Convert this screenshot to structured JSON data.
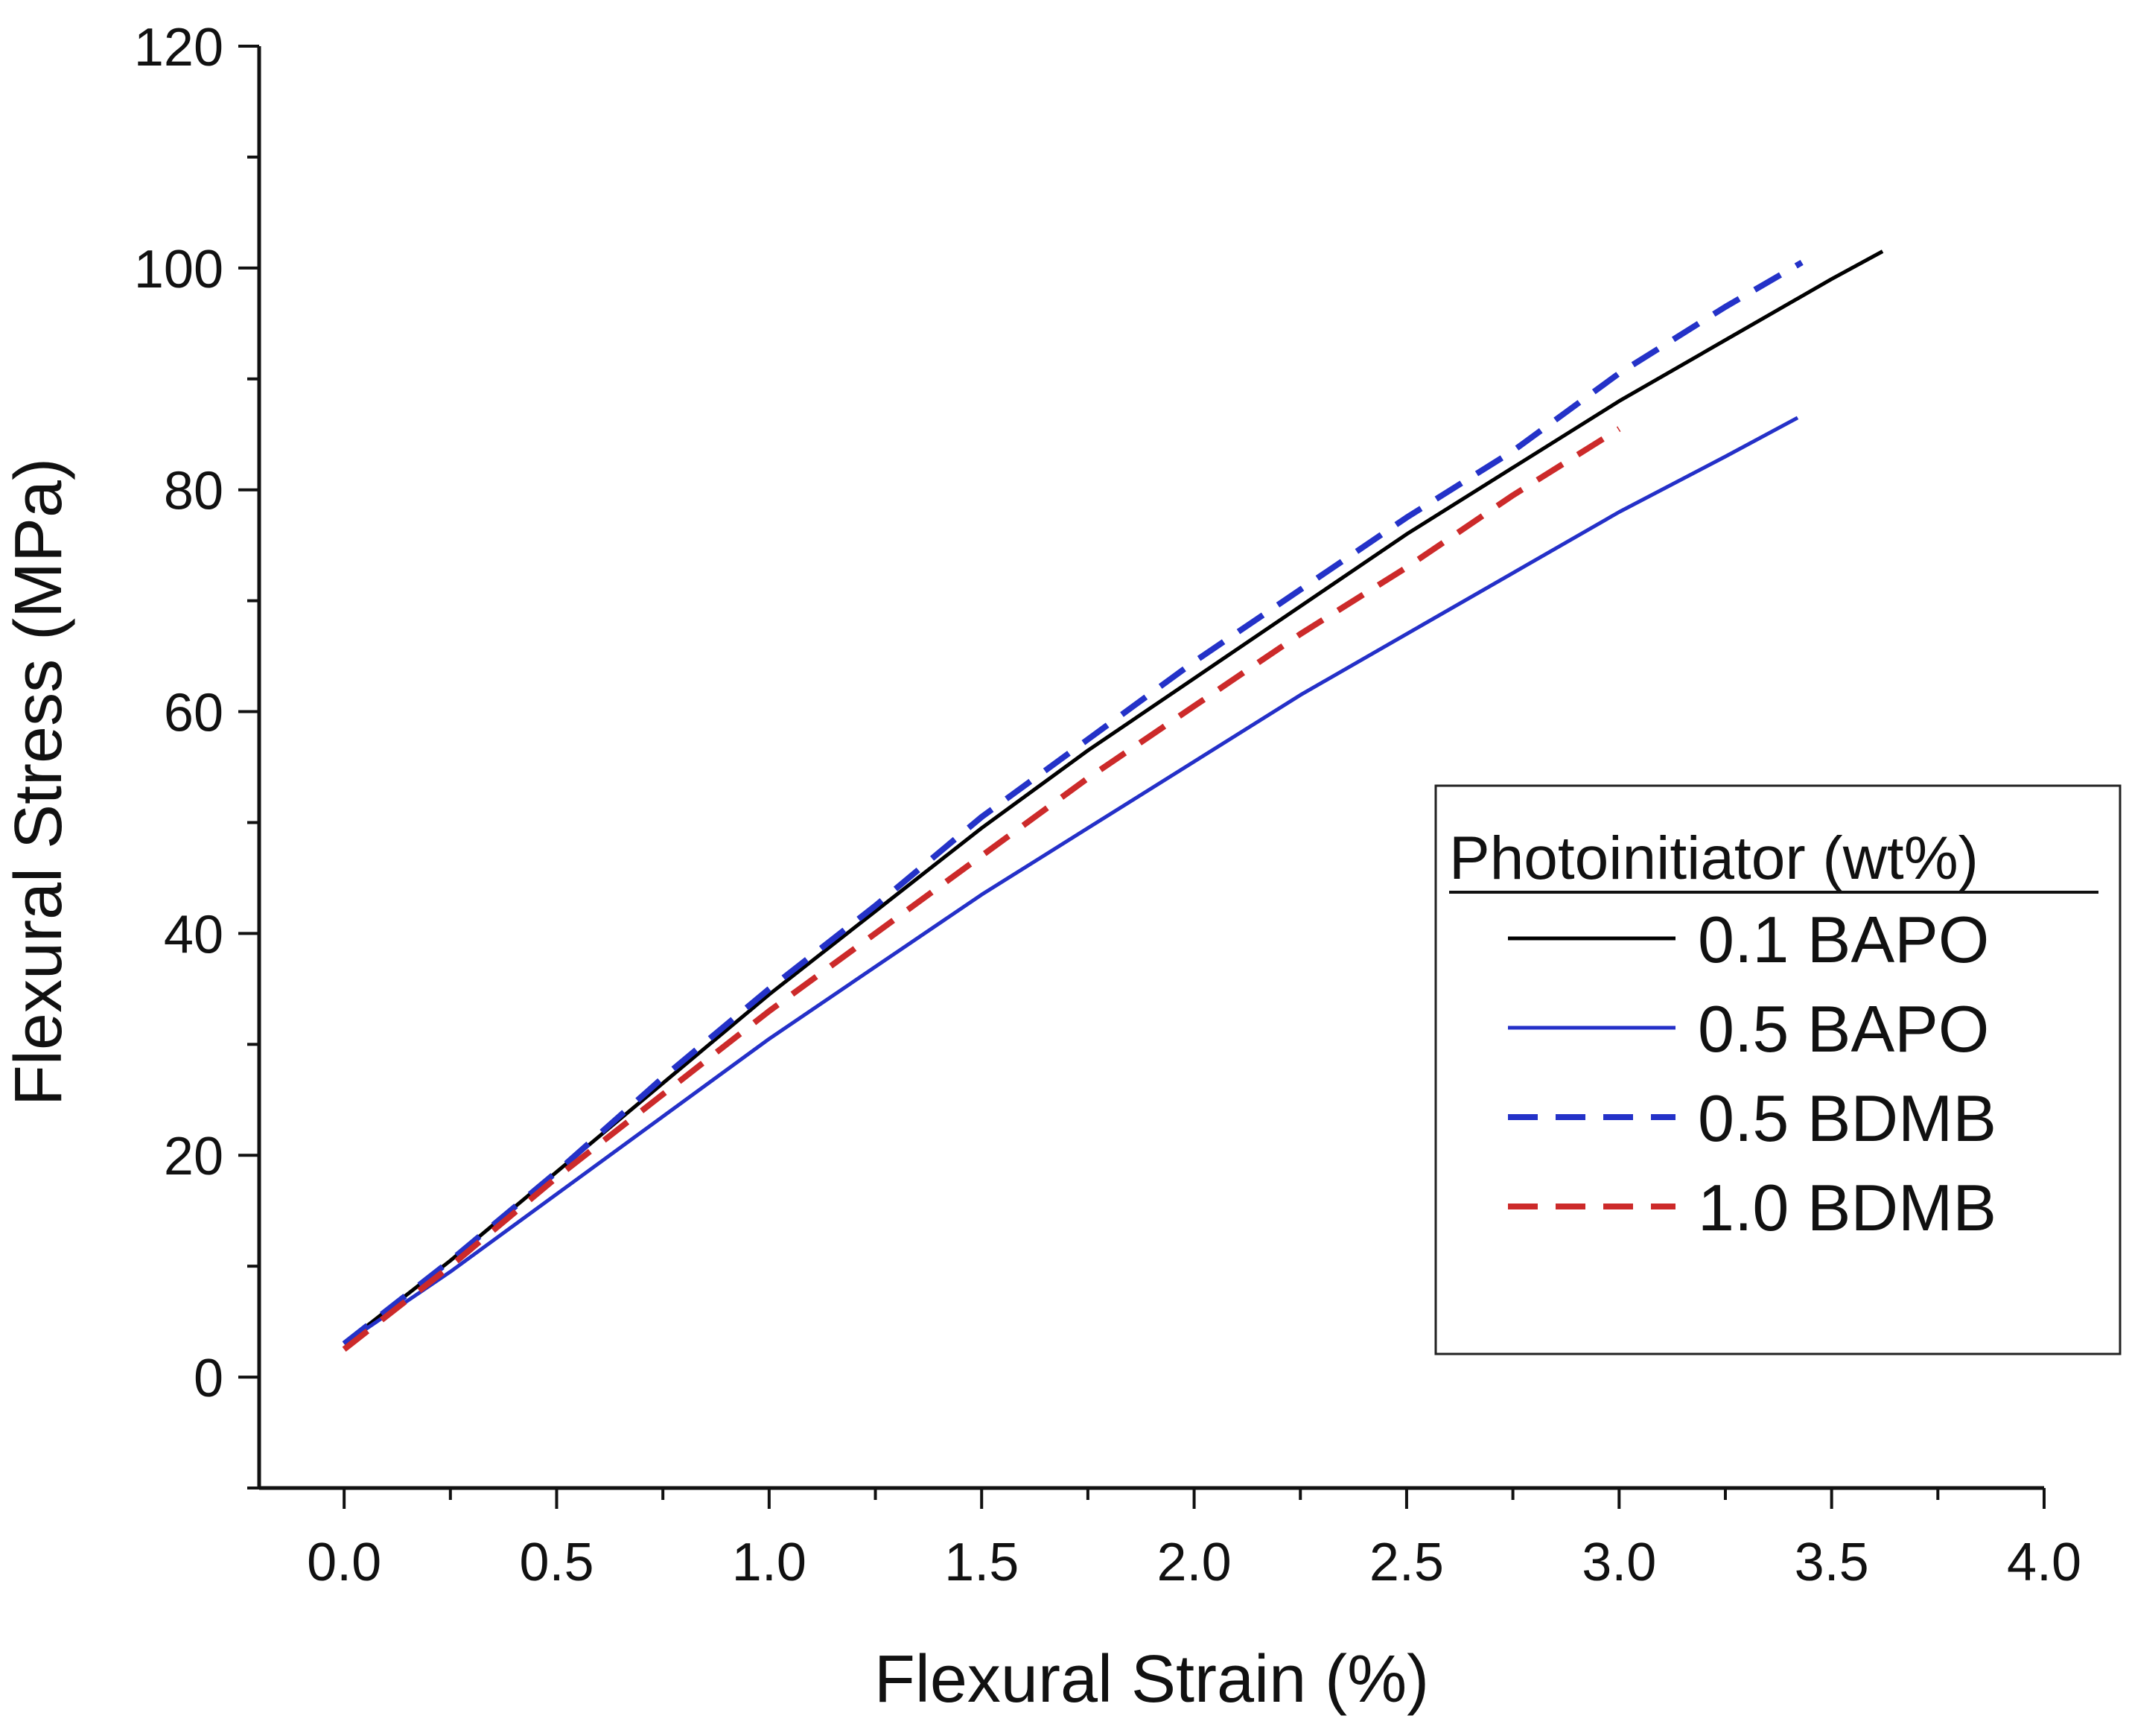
{
  "chart_data": {
    "type": "line",
    "title": "",
    "xlabel": "Flexural Strain (%)",
    "ylabel": "Flexural Stress (MPa)",
    "xlim": [
      -0.2,
      4.0
    ],
    "ylim": [
      -10,
      120
    ],
    "xticks": [
      0.0,
      0.5,
      1.0,
      1.5,
      2.0,
      2.5,
      3.0,
      3.5,
      4.0
    ],
    "xtick_labels": [
      "0.0",
      "0.5",
      "1.0",
      "1.5",
      "2.0",
      "2.5",
      "3.0",
      "3.5",
      "4.0"
    ],
    "yticks": [
      0,
      20,
      40,
      60,
      80,
      100,
      120
    ],
    "ytick_labels": [
      "0",
      "20",
      "40",
      "60",
      "80",
      "100",
      "120"
    ],
    "grid": false,
    "legend": {
      "title": "Photoinitiator (wt%)",
      "position": "right"
    },
    "series": [
      {
        "name": "0.1 BAPO",
        "color": "#000000",
        "dash": "solid",
        "x": [
          0.0,
          0.25,
          0.5,
          0.75,
          1.0,
          1.25,
          1.5,
          1.75,
          2.0,
          2.25,
          2.5,
          2.75,
          3.0,
          3.25,
          3.5,
          3.62
        ],
        "y": [
          3,
          10.5,
          18.5,
          26.5,
          34.5,
          42,
          49.5,
          56.5,
          63,
          69.5,
          76,
          82,
          88,
          93.5,
          99,
          101.5
        ]
      },
      {
        "name": "0.5 BAPO",
        "color": "#2430c8",
        "dash": "solid",
        "x": [
          0.0,
          0.25,
          0.5,
          0.75,
          1.0,
          1.25,
          1.5,
          1.75,
          2.0,
          2.25,
          2.5,
          2.75,
          3.0,
          3.25,
          3.42
        ],
        "y": [
          3,
          9.5,
          16.5,
          23.5,
          30.5,
          37,
          43.5,
          49.5,
          55.5,
          61.5,
          67,
          72.5,
          78,
          83,
          86.5
        ]
      },
      {
        "name": "0.5 BDMB",
        "color": "#2432c8",
        "dash": "dashed",
        "x": [
          0.0,
          0.25,
          0.5,
          0.75,
          1.0,
          1.25,
          1.5,
          1.75,
          2.0,
          2.25,
          2.5,
          2.75,
          3.0,
          3.25,
          3.43
        ],
        "y": [
          3,
          10.5,
          18.5,
          27,
          35,
          42.5,
          50.5,
          57.5,
          64.5,
          71,
          77.5,
          83.5,
          90.5,
          96.5,
          100.5
        ]
      },
      {
        "name": "1.0 BDMB",
        "color": "#cc2a2a",
        "dash": "dashed",
        "x": [
          0.0,
          0.25,
          0.5,
          0.75,
          1.0,
          1.25,
          1.5,
          1.75,
          2.0,
          2.25,
          2.5,
          2.75,
          3.0
        ],
        "y": [
          2.5,
          10,
          18,
          25.5,
          33,
          40,
          47,
          54,
          60.5,
          67,
          73,
          79.5,
          85.5
        ]
      }
    ]
  }
}
